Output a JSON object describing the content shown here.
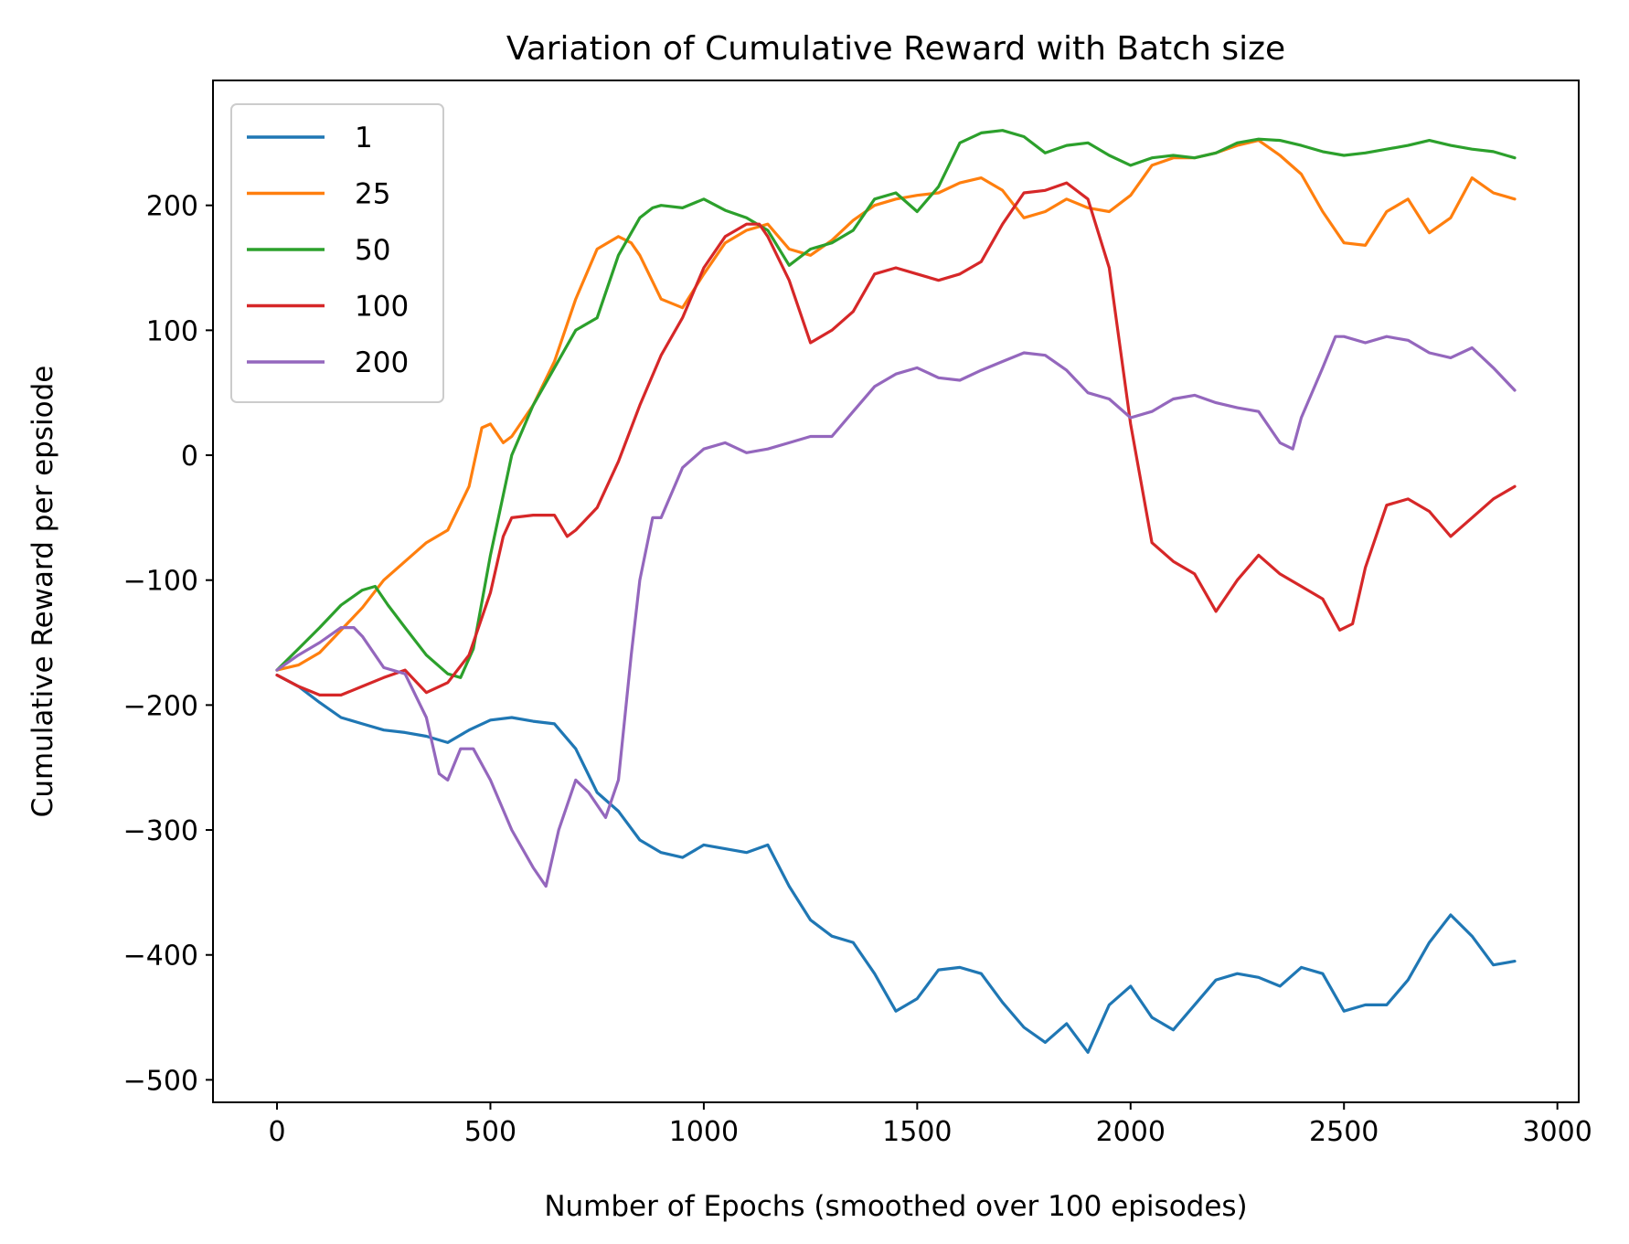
{
  "chart_data": {
    "type": "line",
    "title": "Variation of Cumulative Reward with Batch size",
    "xlabel": "Number of Epochs (smoothed over 100 episodes)",
    "ylabel": "Cumulative Reward per epsiode",
    "xlim": [
      -150,
      3050
    ],
    "ylim": [
      -518,
      300
    ],
    "xticks": [
      0,
      500,
      1000,
      1500,
      2000,
      2500,
      3000
    ],
    "yticks": [
      -500,
      -400,
      -300,
      -200,
      -100,
      0,
      100,
      200
    ],
    "xtick_labels": [
      "0",
      "500",
      "1000",
      "1500",
      "2000",
      "2500",
      "3000"
    ],
    "ytick_labels": [
      "−500",
      "−400",
      "−300",
      "−200",
      "−100",
      "0",
      "100",
      "200"
    ],
    "grid": false,
    "legend": "top-left",
    "series": [
      {
        "name": "1",
        "color": "#1f77b4",
        "x": [
          0,
          50,
          100,
          150,
          200,
          250,
          300,
          350,
          400,
          450,
          500,
          550,
          600,
          650,
          700,
          750,
          800,
          850,
          900,
          950,
          1000,
          1050,
          1100,
          1150,
          1200,
          1250,
          1300,
          1350,
          1400,
          1450,
          1500,
          1550,
          1600,
          1650,
          1700,
          1750,
          1800,
          1850,
          1900,
          1950,
          2000,
          2050,
          2100,
          2150,
          2200,
          2250,
          2300,
          2350,
          2400,
          2450,
          2500,
          2550,
          2600,
          2650,
          2700,
          2750,
          2800,
          2850,
          2900
        ],
        "y": [
          -176,
          -185,
          -198,
          -210,
          -215,
          -220,
          -222,
          -225,
          -230,
          -220,
          -212,
          -210,
          -213,
          -215,
          -235,
          -270,
          -285,
          -308,
          -318,
          -322,
          -312,
          -315,
          -318,
          -312,
          -345,
          -372,
          -385,
          -390,
          -415,
          -445,
          -435,
          -412,
          -410,
          -415,
          -438,
          -458,
          -470,
          -455,
          -478,
          -440,
          -425,
          -450,
          -460,
          -440,
          -420,
          -415,
          -418,
          -425,
          -410,
          -415,
          -445,
          -440,
          -440,
          -420,
          -390,
          -368,
          -385,
          -408,
          -405
        ]
      },
      {
        "name": "25",
        "color": "#ff7f0e",
        "x": [
          0,
          50,
          100,
          150,
          200,
          250,
          300,
          350,
          400,
          450,
          480,
          500,
          530,
          550,
          600,
          650,
          700,
          750,
          800,
          830,
          850,
          900,
          950,
          1000,
          1050,
          1100,
          1150,
          1200,
          1250,
          1300,
          1350,
          1400,
          1450,
          1500,
          1550,
          1600,
          1650,
          1700,
          1750,
          1800,
          1850,
          1900,
          1950,
          2000,
          2050,
          2100,
          2150,
          2200,
          2250,
          2300,
          2350,
          2400,
          2450,
          2500,
          2550,
          2600,
          2650,
          2700,
          2750,
          2800,
          2850,
          2900
        ],
        "y": [
          -172,
          -168,
          -158,
          -140,
          -122,
          -100,
          -85,
          -70,
          -60,
          -25,
          22,
          25,
          10,
          15,
          40,
          75,
          125,
          165,
          175,
          170,
          160,
          125,
          118,
          145,
          170,
          180,
          185,
          165,
          160,
          172,
          188,
          200,
          205,
          208,
          210,
          218,
          222,
          212,
          190,
          195,
          205,
          198,
          195,
          208,
          232,
          238,
          238,
          242,
          248,
          252,
          240,
          225,
          195,
          170,
          168,
          195,
          205,
          178,
          190,
          222,
          210,
          205
        ]
      },
      {
        "name": "50",
        "color": "#2ca02c",
        "x": [
          0,
          50,
          100,
          150,
          200,
          230,
          260,
          300,
          350,
          400,
          430,
          460,
          500,
          550,
          600,
          650,
          700,
          750,
          800,
          850,
          880,
          900,
          950,
          1000,
          1050,
          1100,
          1150,
          1200,
          1250,
          1300,
          1350,
          1400,
          1450,
          1500,
          1550,
          1600,
          1650,
          1700,
          1750,
          1800,
          1850,
          1900,
          1950,
          2000,
          2050,
          2100,
          2150,
          2200,
          2250,
          2300,
          2350,
          2400,
          2450,
          2500,
          2550,
          2600,
          2650,
          2700,
          2750,
          2800,
          2850,
          2900
        ],
        "y": [
          -172,
          -155,
          -138,
          -120,
          -108,
          -105,
          -120,
          -138,
          -160,
          -175,
          -178,
          -155,
          -80,
          0,
          40,
          70,
          100,
          110,
          160,
          190,
          198,
          200,
          198,
          205,
          196,
          190,
          180,
          152,
          165,
          170,
          180,
          205,
          210,
          195,
          215,
          250,
          258,
          260,
          255,
          242,
          248,
          250,
          240,
          232,
          238,
          240,
          238,
          242,
          250,
          253,
          252,
          248,
          243,
          240,
          242,
          245,
          248,
          252,
          248,
          245,
          243,
          238
        ]
      },
      {
        "name": "100",
        "color": "#d62728",
        "x": [
          0,
          50,
          100,
          150,
          200,
          250,
          300,
          350,
          400,
          450,
          500,
          530,
          550,
          600,
          650,
          680,
          700,
          750,
          800,
          850,
          900,
          950,
          1000,
          1050,
          1100,
          1130,
          1150,
          1200,
          1250,
          1300,
          1350,
          1400,
          1450,
          1500,
          1550,
          1600,
          1650,
          1700,
          1750,
          1800,
          1850,
          1900,
          1950,
          2000,
          2050,
          2100,
          2150,
          2200,
          2250,
          2300,
          2350,
          2400,
          2450,
          2490,
          2520,
          2550,
          2600,
          2650,
          2700,
          2750,
          2800,
          2850,
          2900
        ],
        "y": [
          -176,
          -185,
          -192,
          -192,
          -185,
          -178,
          -172,
          -190,
          -182,
          -160,
          -110,
          -65,
          -50,
          -48,
          -48,
          -65,
          -60,
          -42,
          -5,
          40,
          80,
          110,
          150,
          175,
          185,
          185,
          175,
          140,
          90,
          100,
          115,
          145,
          150,
          145,
          140,
          145,
          155,
          185,
          210,
          212,
          218,
          205,
          150,
          25,
          -70,
          -85,
          -95,
          -125,
          -100,
          -80,
          -95,
          -105,
          -115,
          -140,
          -135,
          -90,
          -40,
          -35,
          -45,
          -65,
          -50,
          -35,
          -25
        ]
      },
      {
        "name": "200",
        "color": "#9467bd",
        "x": [
          0,
          50,
          100,
          150,
          180,
          200,
          250,
          300,
          350,
          380,
          400,
          430,
          460,
          500,
          550,
          600,
          630,
          660,
          700,
          730,
          770,
          800,
          830,
          850,
          880,
          900,
          950,
          1000,
          1050,
          1100,
          1150,
          1200,
          1250,
          1300,
          1350,
          1400,
          1450,
          1500,
          1550,
          1600,
          1650,
          1700,
          1750,
          1800,
          1850,
          1900,
          1950,
          2000,
          2050,
          2100,
          2150,
          2200,
          2250,
          2300,
          2350,
          2380,
          2400,
          2450,
          2480,
          2500,
          2550,
          2600,
          2650,
          2700,
          2750,
          2800,
          2850,
          2900
        ],
        "y": [
          -172,
          -160,
          -150,
          -138,
          -138,
          -145,
          -170,
          -175,
          -210,
          -255,
          -260,
          -235,
          -235,
          -260,
          -300,
          -330,
          -345,
          -300,
          -260,
          -270,
          -290,
          -260,
          -160,
          -100,
          -50,
          -50,
          -10,
          5,
          10,
          2,
          5,
          10,
          15,
          15,
          35,
          55,
          65,
          70,
          62,
          60,
          68,
          75,
          82,
          80,
          68,
          50,
          45,
          30,
          35,
          45,
          48,
          42,
          38,
          35,
          10,
          5,
          30,
          70,
          95,
          95,
          90,
          95,
          92,
          82,
          78,
          86,
          70,
          52
        ]
      }
    ]
  }
}
